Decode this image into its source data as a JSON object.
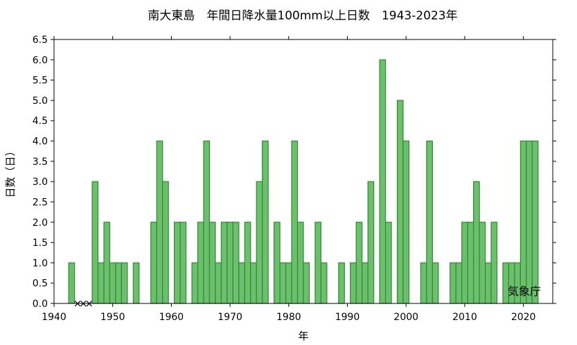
{
  "chart_data": {
    "type": "bar",
    "title": "南大東島　年間日降水量100mm以上日数　1943-2023年",
    "xlabel": "年",
    "ylabel": "日数（日）",
    "credit": "気象庁",
    "xlim": [
      1940,
      2025
    ],
    "ylim": [
      0,
      6.5
    ],
    "xticks": [
      1940,
      1950,
      1960,
      1970,
      1980,
      1990,
      2000,
      2010,
      2020
    ],
    "yticks": [
      "0.0",
      "0.5",
      "1.0",
      "1.5",
      "2.0",
      "2.5",
      "3.0",
      "3.5",
      "4.0",
      "4.5",
      "5.0",
      "5.5",
      "6.0",
      "6.5"
    ],
    "grid": false,
    "bar_color": "#6cbf6c",
    "bar_edge_color": "#2e8b2e",
    "missing_marker": "×",
    "missing_years": [
      1944,
      1945,
      1946
    ],
    "x": [
      1943,
      1947,
      1948,
      1949,
      1950,
      1951,
      1952,
      1954,
      1957,
      1958,
      1959,
      1961,
      1962,
      1964,
      1965,
      1966,
      1967,
      1968,
      1969,
      1970,
      1971,
      1972,
      1973,
      1974,
      1975,
      1976,
      1978,
      1979,
      1980,
      1981,
      1982,
      1983,
      1985,
      1986,
      1989,
      1991,
      1992,
      1993,
      1994,
      1996,
      1997,
      1999,
      2000,
      2003,
      2004,
      2005,
      2008,
      2009,
      2010,
      2011,
      2012,
      2013,
      2014,
      2015,
      2017,
      2018,
      2019,
      2020,
      2021,
      2022
    ],
    "values": [
      1,
      3,
      1,
      2,
      1,
      1,
      1,
      1,
      2,
      4,
      3,
      2,
      2,
      1,
      2,
      4,
      2,
      1,
      2,
      2,
      2,
      1,
      2,
      1,
      3,
      4,
      2,
      1,
      1,
      4,
      2,
      1,
      2,
      1,
      1,
      1,
      2,
      1,
      3,
      6,
      2,
      5,
      4,
      1,
      4,
      1,
      1,
      1,
      2,
      2,
      3,
      2,
      1,
      2,
      1,
      1,
      1,
      4,
      4,
      4
    ]
  }
}
